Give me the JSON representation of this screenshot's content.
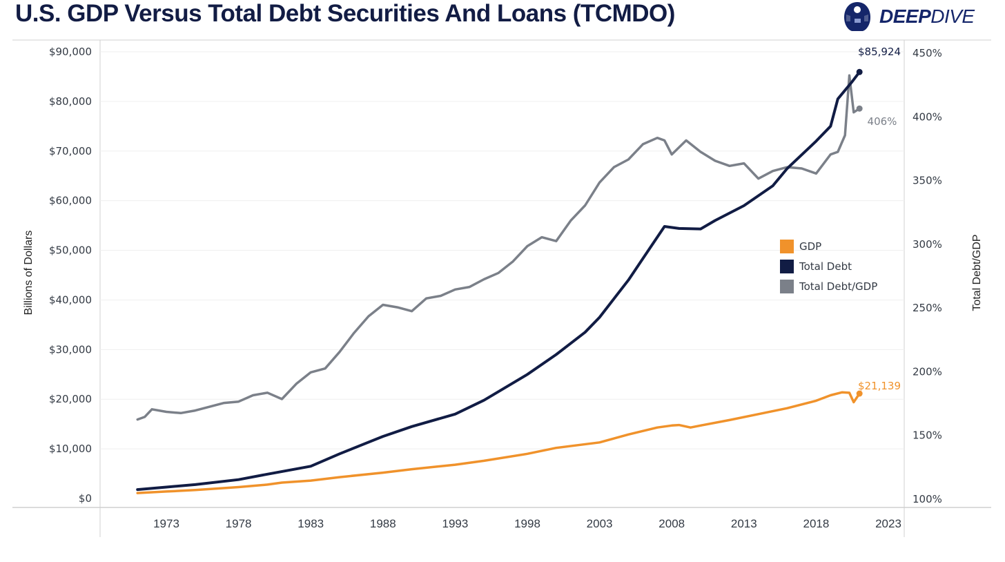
{
  "header": {
    "title": "U.S. GDP Versus Total Debt Securities And Loans (TCMDO)",
    "logo_text_bold": "DEEP",
    "logo_text_light": "DIVE"
  },
  "colors": {
    "gdp": "#f0922b",
    "total_debt": "#111c44",
    "debt_gdp": "#7b8089",
    "title": "#121c44"
  },
  "chart_data": {
    "type": "line",
    "title": "U.S. GDP Versus Total Debt Securities And Loans (TCMDO)",
    "xlabel": "",
    "ylabel": "Billions of Dollars",
    "y2label": "Total Debt/GDP",
    "xlim": [
      1968.5,
      2023
    ],
    "ylim": [
      0,
      90000
    ],
    "y2lim": [
      100,
      450
    ],
    "grid": true,
    "legend_position": "right",
    "x_ticks": [
      "1973",
      "1978",
      "1983",
      "1988",
      "1993",
      "1998",
      "2003",
      "2008",
      "2013",
      "2018",
      "2023"
    ],
    "y_ticks": [
      "$0",
      "$10,000",
      "$20,000",
      "$30,000",
      "$40,000",
      "$50,000",
      "$60,000",
      "$70,000",
      "$80,000",
      "$90,000"
    ],
    "y2_ticks": [
      "100%",
      "150%",
      "200%",
      "250%",
      "300%",
      "350%",
      "400%",
      "450%"
    ],
    "series": [
      {
        "name": "GDP",
        "axis": "left",
        "x": [
          1971,
          1973,
          1975,
          1978,
          1980,
          1981,
          1983,
          1985,
          1988,
          1990,
          1993,
          1995,
          1998,
          2000,
          2003,
          2005,
          2007,
          2008,
          2008.5,
          2009.3,
          2010,
          2012,
          2014,
          2016,
          2018,
          2019,
          2019.8,
          2020.3,
          2020.6,
          2021
        ],
        "values": [
          1100,
          1400,
          1700,
          2300,
          2800,
          3200,
          3600,
          4300,
          5200,
          5900,
          6800,
          7600,
          9000,
          10200,
          11300,
          12900,
          14300,
          14700,
          14800,
          14300,
          14700,
          15800,
          17000,
          18200,
          19700,
          20800,
          21400,
          21300,
          19400,
          21139
        ],
        "end_label": "$21,139"
      },
      {
        "name": "Total Debt",
        "axis": "left",
        "x": [
          1971,
          1973,
          1975,
          1978,
          1980,
          1983,
          1985,
          1988,
          1990,
          1993,
          1995,
          1998,
          2000,
          2002,
          2003,
          2005,
          2006.5,
          2007.5,
          2008.5,
          2010,
          2011,
          2013,
          2015,
          2016,
          2018,
          2019,
          2019.5,
          2020.5,
          2021
        ],
        "values": [
          1800,
          2300,
          2800,
          3800,
          4900,
          6500,
          9000,
          12500,
          14500,
          17000,
          19800,
          25000,
          29000,
          33500,
          36500,
          44000,
          50500,
          54800,
          54400,
          54300,
          56000,
          59000,
          63000,
          66500,
          72000,
          75000,
          80500,
          84000,
          85924
        ],
        "end_label": "$85,924"
      },
      {
        "name": "Total Debt/GDP",
        "axis": "right",
        "x": [
          1971,
          1971.5,
          1972,
          1973,
          1974,
          1975,
          1976,
          1977,
          1978,
          1979,
          1980,
          1981,
          1982,
          1983,
          1984,
          1985,
          1986,
          1987,
          1988,
          1989,
          1990,
          1991,
          1992,
          1993,
          1994,
          1995,
          1996,
          1997,
          1998,
          1999,
          2000,
          2001,
          2002,
          2003,
          2004,
          2005,
          2006,
          2007,
          2007.5,
          2008,
          2009,
          2010,
          2011,
          2012,
          2013,
          2014,
          2015,
          2016,
          2017,
          2018,
          2019,
          2019.5,
          2020,
          2020.3,
          2020.6,
          2021
        ],
        "values": [
          162,
          164,
          170,
          168,
          167,
          169,
          172,
          175,
          176,
          181,
          183,
          178,
          190,
          199,
          202,
          215,
          230,
          243,
          252,
          250,
          247,
          257,
          259,
          264,
          266,
          272,
          277,
          286,
          298,
          305,
          302,
          318,
          330,
          348,
          360,
          366,
          378,
          383,
          381,
          370,
          381,
          372,
          365,
          361,
          363,
          351,
          357,
          360,
          359,
          355,
          370,
          372,
          385,
          432,
          403,
          406
        ],
        "end_label": "406%"
      }
    ]
  }
}
